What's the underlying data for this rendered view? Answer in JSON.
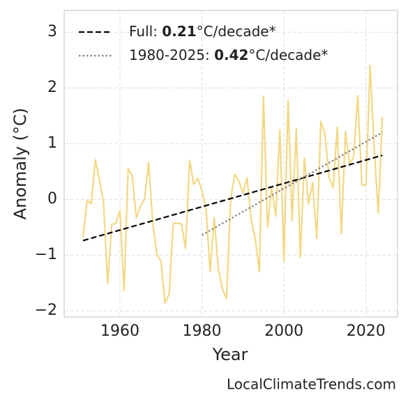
{
  "chart_data": {
    "type": "line",
    "xlabel": "Year",
    "ylabel": "Anomaly (°C)",
    "watermark": "LocalClimateTrends.com",
    "x": [
      1951,
      1952,
      1953,
      1954,
      1955,
      1956,
      1957,
      1958,
      1959,
      1960,
      1961,
      1962,
      1963,
      1964,
      1965,
      1966,
      1967,
      1968,
      1969,
      1970,
      1971,
      1972,
      1973,
      1974,
      1975,
      1976,
      1977,
      1978,
      1979,
      1980,
      1981,
      1982,
      1983,
      1984,
      1985,
      1986,
      1987,
      1988,
      1989,
      1990,
      1991,
      1992,
      1993,
      1994,
      1995,
      1996,
      1997,
      1998,
      1999,
      2000,
      2001,
      2002,
      2003,
      2004,
      2005,
      2006,
      2007,
      2008,
      2009,
      2010,
      2011,
      2012,
      2013,
      2014,
      2015,
      2016,
      2017,
      2018,
      2019,
      2020,
      2021,
      2022,
      2023,
      2024
    ],
    "values": [
      -0.68,
      -0.02,
      -0.08,
      0.71,
      0.35,
      -0.05,
      -1.51,
      -0.45,
      -0.43,
      -0.2,
      -1.64,
      0.55,
      0.42,
      -0.33,
      -0.12,
      0.0,
      0.66,
      -0.42,
      -0.99,
      -1.11,
      -1.86,
      -1.7,
      -0.43,
      -0.43,
      -0.44,
      -0.88,
      0.7,
      0.27,
      0.38,
      0.15,
      -0.18,
      -1.3,
      -0.33,
      -1.25,
      -1.61,
      -1.78,
      0.0,
      0.45,
      0.33,
      0.11,
      0.39,
      -0.36,
      -0.7,
      -1.3,
      1.85,
      -0.5,
      0.22,
      -0.3,
      1.25,
      -1.11,
      1.79,
      -0.38,
      1.27,
      -1.04,
      0.74,
      -0.08,
      0.3,
      -0.7,
      1.4,
      1.17,
      0.39,
      0.21,
      1.29,
      -0.62,
      1.22,
      0.63,
      0.76,
      1.86,
      0.26,
      0.25,
      2.4,
      0.92,
      -0.25,
      1.48
    ],
    "color": "#f2d883",
    "trend_lines": [
      {
        "label_parts": [
          "Full: ",
          "0.21",
          "°C/decade*"
        ],
        "x": [
          1951,
          2024
        ],
        "values": [
          -0.74,
          0.79
        ],
        "color": "#000000",
        "style": "dashed"
      },
      {
        "label_parts": [
          "1980-2025: ",
          "0.42",
          "°C/decade*"
        ],
        "x": [
          1980,
          2024
        ],
        "values": [
          -0.64,
          1.2
        ],
        "color": "#808080",
        "style": "dotted"
      }
    ],
    "xlim": [
      1946.4,
      2027.7
    ],
    "ylim": [
      -2.11,
      3.39
    ],
    "xticks": [
      1960,
      1980,
      2000,
      2020
    ],
    "yticks": [
      {
        "value": -2,
        "label": "−2"
      },
      {
        "value": -1,
        "label": "−1"
      },
      0,
      1,
      2,
      3
    ],
    "grid": true,
    "legend": "upper left"
  }
}
